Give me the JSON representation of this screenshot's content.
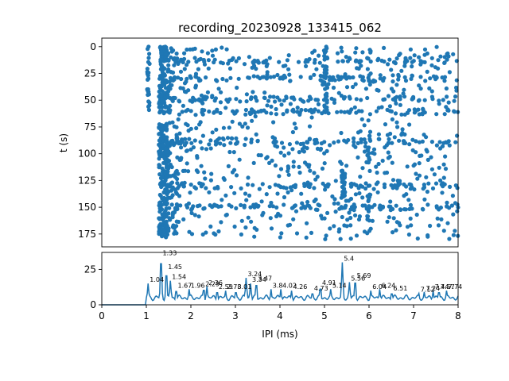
{
  "chart_data": [
    {
      "type": "scatter",
      "title": "recording_20230928_133415_062",
      "xlabel": "",
      "ylabel": "t (s)",
      "xlim": [
        0,
        8
      ],
      "ylim": [
        187,
        -8
      ],
      "y_inverted": true,
      "y_ticks": [
        "0",
        "25",
        "50",
        "75",
        "100",
        "125",
        "150",
        "175"
      ],
      "marker_color": "#1f77b4",
      "description_of_points": "Raster of inter-pulse intervals (ms) vs time; dots span x≈1.0–8.0, t≈0–180 s, dense vertical band near x≈1.3–1.5; horizontal bands at t≈13, 30, 49, 61, 150.",
      "seed_points_shown_as_sample": [
        [
          1.05,
          0
        ],
        [
          1.32,
          14
        ],
        [
          1.41,
          27
        ],
        [
          1.48,
          45
        ],
        [
          1.35,
          60
        ],
        [
          1.3,
          88
        ],
        [
          1.36,
          121
        ],
        [
          1.31,
          150
        ],
        [
          1.35,
          175
        ],
        [
          1.55,
          10
        ],
        [
          1.6,
          48
        ],
        [
          2.0,
          96
        ],
        [
          2.3,
          14
        ],
        [
          2.6,
          131
        ],
        [
          3.0,
          62
        ],
        [
          3.2,
          150
        ],
        [
          3.5,
          28
        ],
        [
          3.9,
          111
        ],
        [
          4.2,
          8
        ],
        [
          4.6,
          165
        ],
        [
          5.0,
          60
        ],
        [
          5.4,
          131
        ],
        [
          5.7,
          35
        ],
        [
          6.0,
          149
        ],
        [
          6.4,
          92
        ],
        [
          6.8,
          18
        ],
        [
          7.2,
          63
        ],
        [
          7.6,
          125
        ],
        [
          7.9,
          176
        ]
      ]
    },
    {
      "type": "line",
      "xlabel": "IPI (ms)",
      "ylabel": "",
      "xlim": [
        0,
        8
      ],
      "ylim": [
        0,
        37
      ],
      "x_ticks": [
        "0",
        "1",
        "2",
        "3",
        "4",
        "5",
        "6",
        "7",
        "8"
      ],
      "y_ticks": [
        "0",
        "25"
      ],
      "line_color": "#1f77b4",
      "peaks": [
        {
          "x": 1.04,
          "y": 15,
          "label": "1.04"
        },
        {
          "x": 1.33,
          "y": 34,
          "label": "1.33"
        },
        {
          "x": 1.45,
          "y": 24,
          "label": "1.45"
        },
        {
          "x": 1.54,
          "y": 17,
          "label": "1.54"
        },
        {
          "x": 1.67,
          "y": 11,
          "label": "1.67"
        },
        {
          "x": 1.96,
          "y": 11,
          "label": "1.96"
        },
        {
          "x": 2.29,
          "y": 12,
          "label": "2.29"
        },
        {
          "x": 2.36,
          "y": 13,
          "label": "2.36"
        },
        {
          "x": 2.59,
          "y": 10,
          "label": "2.59"
        },
        {
          "x": 2.78,
          "y": 10,
          "label": "2.78"
        },
        {
          "x": 3.01,
          "y": 10,
          "label": "3.01"
        },
        {
          "x": 3.24,
          "y": 19,
          "label": "3.24"
        },
        {
          "x": 3.34,
          "y": 15,
          "label": "3.34"
        },
        {
          "x": 3.47,
          "y": 16,
          "label": "3.47"
        },
        {
          "x": 3.8,
          "y": 11,
          "label": "3.8"
        },
        {
          "x": 4.02,
          "y": 11,
          "label": "4.02"
        },
        {
          "x": 4.26,
          "y": 10,
          "label": "4.26"
        },
        {
          "x": 4.73,
          "y": 9,
          "label": "4.73"
        },
        {
          "x": 4.91,
          "y": 13,
          "label": "4.91"
        },
        {
          "x": 5.14,
          "y": 11,
          "label": "5.14"
        },
        {
          "x": 5.4,
          "y": 30,
          "label": "5.4"
        },
        {
          "x": 5.56,
          "y": 16,
          "label": "5.56"
        },
        {
          "x": 5.69,
          "y": 18,
          "label": "5.69"
        },
        {
          "x": 6.04,
          "y": 10,
          "label": "6.04"
        },
        {
          "x": 6.24,
          "y": 11,
          "label": "6.24"
        },
        {
          "x": 6.51,
          "y": 9,
          "label": "6.51"
        },
        {
          "x": 7.12,
          "y": 8,
          "label": "7.12"
        },
        {
          "x": 7.24,
          "y": 9,
          "label": "7.24"
        },
        {
          "x": 7.44,
          "y": 10,
          "label": "7.44"
        },
        {
          "x": 7.57,
          "y": 10,
          "label": "7.57"
        },
        {
          "x": 7.74,
          "y": 10,
          "label": "7.74"
        }
      ]
    }
  ]
}
